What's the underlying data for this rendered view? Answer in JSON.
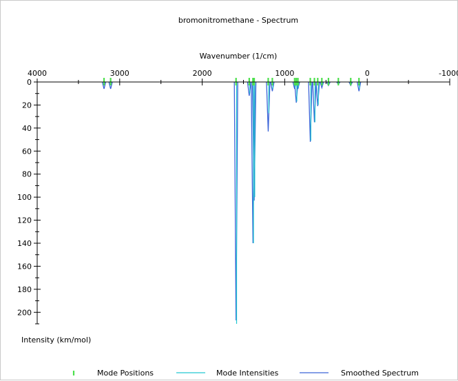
{
  "chart_data": {
    "type": "bar",
    "title": "bromonitromethane - Spectrum",
    "xlabel": "Wavenumber (1/cm)",
    "ylabel": "Intensity (km/mol)",
    "xlim": [
      4000,
      -1000
    ],
    "ylim": [
      0,
      210
    ],
    "x_ticks": [
      4000,
      3000,
      2000,
      1000,
      0,
      -1000
    ],
    "y_ticks": [
      0,
      20,
      40,
      60,
      80,
      100,
      120,
      140,
      160,
      180,
      200
    ],
    "grid": false,
    "legend_position": "bottom",
    "series": [
      {
        "name": "Mode Positions",
        "color": "#4ce04c",
        "x": [
          3190,
          3110,
          1590,
          1430,
          1385,
          1370,
          1200,
          1150,
          880,
          860,
          840,
          690,
          640,
          600,
          550,
          470,
          350,
          200,
          100
        ],
        "y": [
          0,
          0,
          0,
          0,
          0,
          0,
          0,
          0,
          0,
          0,
          0,
          0,
          0,
          0,
          0,
          0,
          0,
          0,
          0
        ]
      },
      {
        "name": "Mode Intensities",
        "color": "#20c8d0",
        "x": [
          3190,
          3110,
          1590,
          1430,
          1385,
          1370,
          1200,
          1150,
          880,
          860,
          840,
          690,
          640,
          600,
          550,
          470,
          350,
          200,
          100
        ],
        "y": [
          1,
          1,
          210,
          10,
          140,
          100,
          27,
          6,
          5,
          17,
          5,
          51,
          35,
          20,
          3,
          1,
          1,
          1,
          6
        ]
      },
      {
        "name": "Smoothed Spectrum",
        "color": "#3a63d8",
        "x": [
          3190,
          3110,
          1590,
          1430,
          1385,
          1370,
          1200,
          1150,
          880,
          860,
          840,
          690,
          640,
          600,
          550,
          470,
          350,
          200,
          100
        ],
        "y": [
          6,
          6,
          207,
          12,
          140,
          103,
          43,
          8,
          6,
          18,
          6,
          52,
          35,
          21,
          5,
          3,
          2,
          3,
          8
        ]
      }
    ]
  }
}
